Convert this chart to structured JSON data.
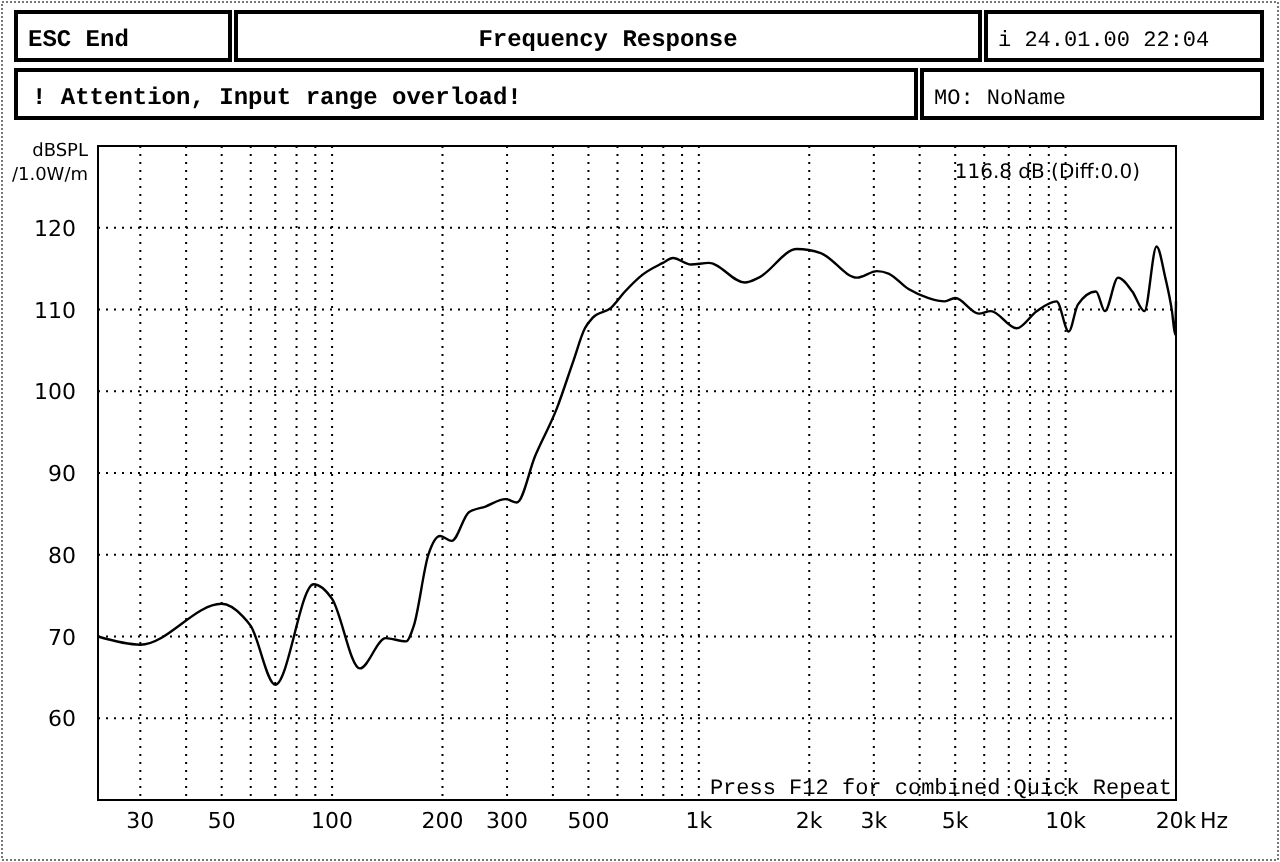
{
  "chart_data": {
    "type": "line",
    "title": "Frequency Response",
    "ylabel": "dBSPL /1.0W/m",
    "annotations": [
      "ESC End",
      "i 24.01.00 22:04",
      "! Attention, Input range overload!",
      "MO: NoName",
      "116.8 dB (Diff:0.0)",
      "Press F12 for combined Quick Repeat"
    ],
    "xlabel": "Hz",
    "log": "x",
    "grid": true,
    "marker": "none",
    "line_style": "solid",
    "xlim": [
      23,
      20000
    ],
    "ylim": [
      50,
      130
    ],
    "xticks": [
      30,
      {
        "value": 40,
        "label": null
      },
      50,
      {
        "value": 60,
        "label": null
      },
      {
        "value": 70,
        "label": null
      },
      {
        "value": 80,
        "label": null
      },
      {
        "value": 90,
        "label": null
      },
      100,
      200,
      300,
      {
        "value": 400,
        "label": null
      },
      500,
      {
        "value": 600,
        "label": null
      },
      {
        "value": 700,
        "label": null
      },
      {
        "value": 800,
        "label": null
      },
      {
        "value": 900,
        "label": null
      },
      {
        "value": 1000,
        "label": "1k"
      },
      {
        "value": 2000,
        "label": "2k"
      },
      {
        "value": 3000,
        "label": "3k"
      },
      {
        "value": 4000,
        "label": null
      },
      {
        "value": 5000,
        "label": "5k"
      },
      {
        "value": 6000,
        "label": null
      },
      {
        "value": 7000,
        "label": null
      },
      {
        "value": 8000,
        "label": null
      },
      {
        "value": 9000,
        "label": null
      },
      {
        "value": 10000,
        "label": "10k"
      },
      {
        "value": 20000,
        "label": "20k"
      }
    ],
    "yticks": [
      60,
      70,
      80,
      90,
      100,
      110,
      120
    ],
    "series": [
      {
        "color": "#000000",
        "x": [
          23,
          30,
          50,
          57,
          60,
          70,
          89,
          100,
          119,
          140,
          159,
          167,
          183,
          197,
          212,
          236,
          262,
          297,
          319,
          358,
          410,
          454,
          489,
          514,
          576,
          629,
          704,
          798,
          850,
          951,
          1065,
          1335,
          1457,
          1850,
          2150,
          2700,
          3060,
          3290,
          3730,
          4230,
          4680,
          5000,
          5800,
          6250,
          7350,
          8340,
          9450,
          10200,
          10800,
          12100,
          12800,
          13900,
          15200,
          16400,
          17700,
          18700,
          19500,
          19900,
          20000
        ],
        "values": [
          70.0,
          69.0,
          74.0,
          72.5,
          71.3,
          64.1,
          76.4,
          74.6,
          66.1,
          69.8,
          69.4,
          71.3,
          80.0,
          82.3,
          81.7,
          85.2,
          85.9,
          86.8,
          86.4,
          92.1,
          97.9,
          103.6,
          107.7,
          109.0,
          110.2,
          112.2,
          114.3,
          115.7,
          116.3,
          115.5,
          115.7,
          113.3,
          113.9,
          117.4,
          116.9,
          113.9,
          114.7,
          114.4,
          112.5,
          111.4,
          111.0,
          111.4,
          109.5,
          109.8,
          107.7,
          109.8,
          111.0,
          107.3,
          110.6,
          112.2,
          109.8,
          113.9,
          112.2,
          109.8,
          117.7,
          113.9,
          109.8,
          106.9,
          111.0
        ]
      }
    ]
  }
}
